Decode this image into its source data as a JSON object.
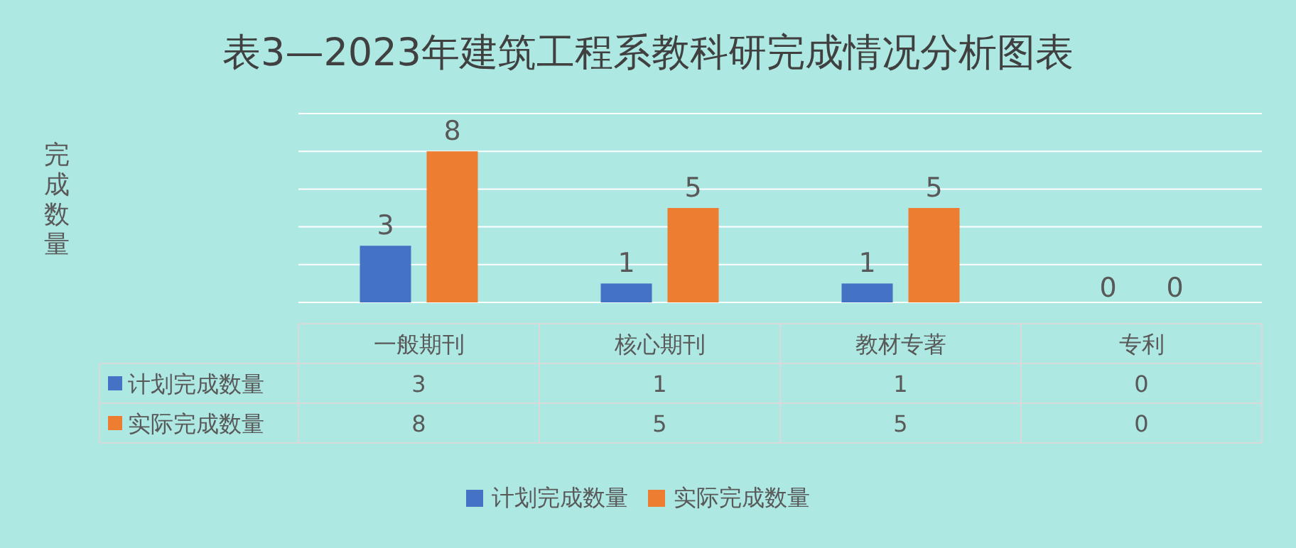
{
  "chart_data": [
    {
      "type": "bar",
      "title": "表3—2023年建筑工程系教科研完成情况分析图表",
      "ylabel": "完成数量",
      "categories": [
        "一般期刊",
        "核心期刊",
        "教材专著",
        "专利"
      ],
      "series": [
        {
          "name": "计划完成数量",
          "color": "#4472c4",
          "values": [
            3,
            1,
            1,
            0
          ]
        },
        {
          "name": "实际完成数量",
          "color": "#ed7d31",
          "values": [
            8,
            5,
            5,
            0
          ]
        }
      ],
      "ylim": [
        0,
        10
      ],
      "yticks": [
        {
          "value": 0,
          "label": null
        },
        {
          "value": 2,
          "label": null
        },
        {
          "value": 4,
          "label": null
        },
        {
          "value": 6,
          "label": null
        },
        {
          "value": 8,
          "label": null
        },
        {
          "value": 10,
          "label": null
        }
      ],
      "tick_labels": "x",
      "grid": "y",
      "data_labels": true,
      "legend": "bottom"
    },
    {
      "type": "other",
      "y_categories": [
        "计划完成数量",
        "实际完成数量"
      ],
      "colors": [
        "#4472c4",
        "#ed7d31"
      ],
      "cell_labels": [
        [
          "3",
          "1",
          "1",
          "0"
        ],
        [
          "8",
          "5",
          "5",
          "0"
        ]
      ]
    }
  ]
}
